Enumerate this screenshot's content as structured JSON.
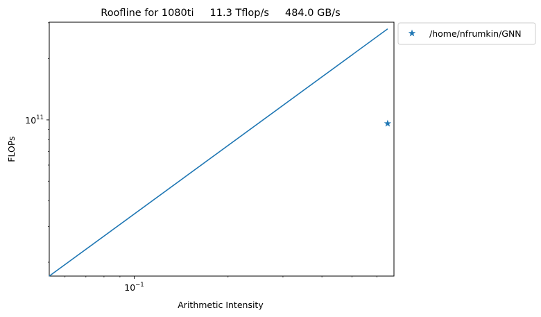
{
  "chart_data": {
    "type": "scatter",
    "title": "Roofline for 1080ti     11.3 Tflop/s     484.0 GB/s",
    "xlabel": "Arithmetic Intensity",
    "ylabel": "FLOPs",
    "x_scale": "log",
    "y_scale": "log",
    "xlim": [
      0.0534,
      0.681
    ],
    "ylim": [
      17100000000.0,
      302000000000.0
    ],
    "x_ticks": [
      {
        "value": 0.1,
        "base": "10",
        "exp": "−1"
      }
    ],
    "y_ticks": [
      {
        "value": 100000000000.0,
        "base": "10",
        "exp": "11"
      }
    ],
    "roofline": {
      "color": "#1f77b4",
      "x": [
        0.0534,
        0.65
      ],
      "y": [
        17100000000.0,
        280000000000.0
      ]
    },
    "series": [
      {
        "name": "/home/nfrumkin/GNN",
        "marker": "star",
        "color": "#1f77b4",
        "points": [
          {
            "x": 0.65,
            "y": 96000000000.0
          }
        ]
      }
    ],
    "legend": {
      "placement": "outside-top-right"
    }
  }
}
